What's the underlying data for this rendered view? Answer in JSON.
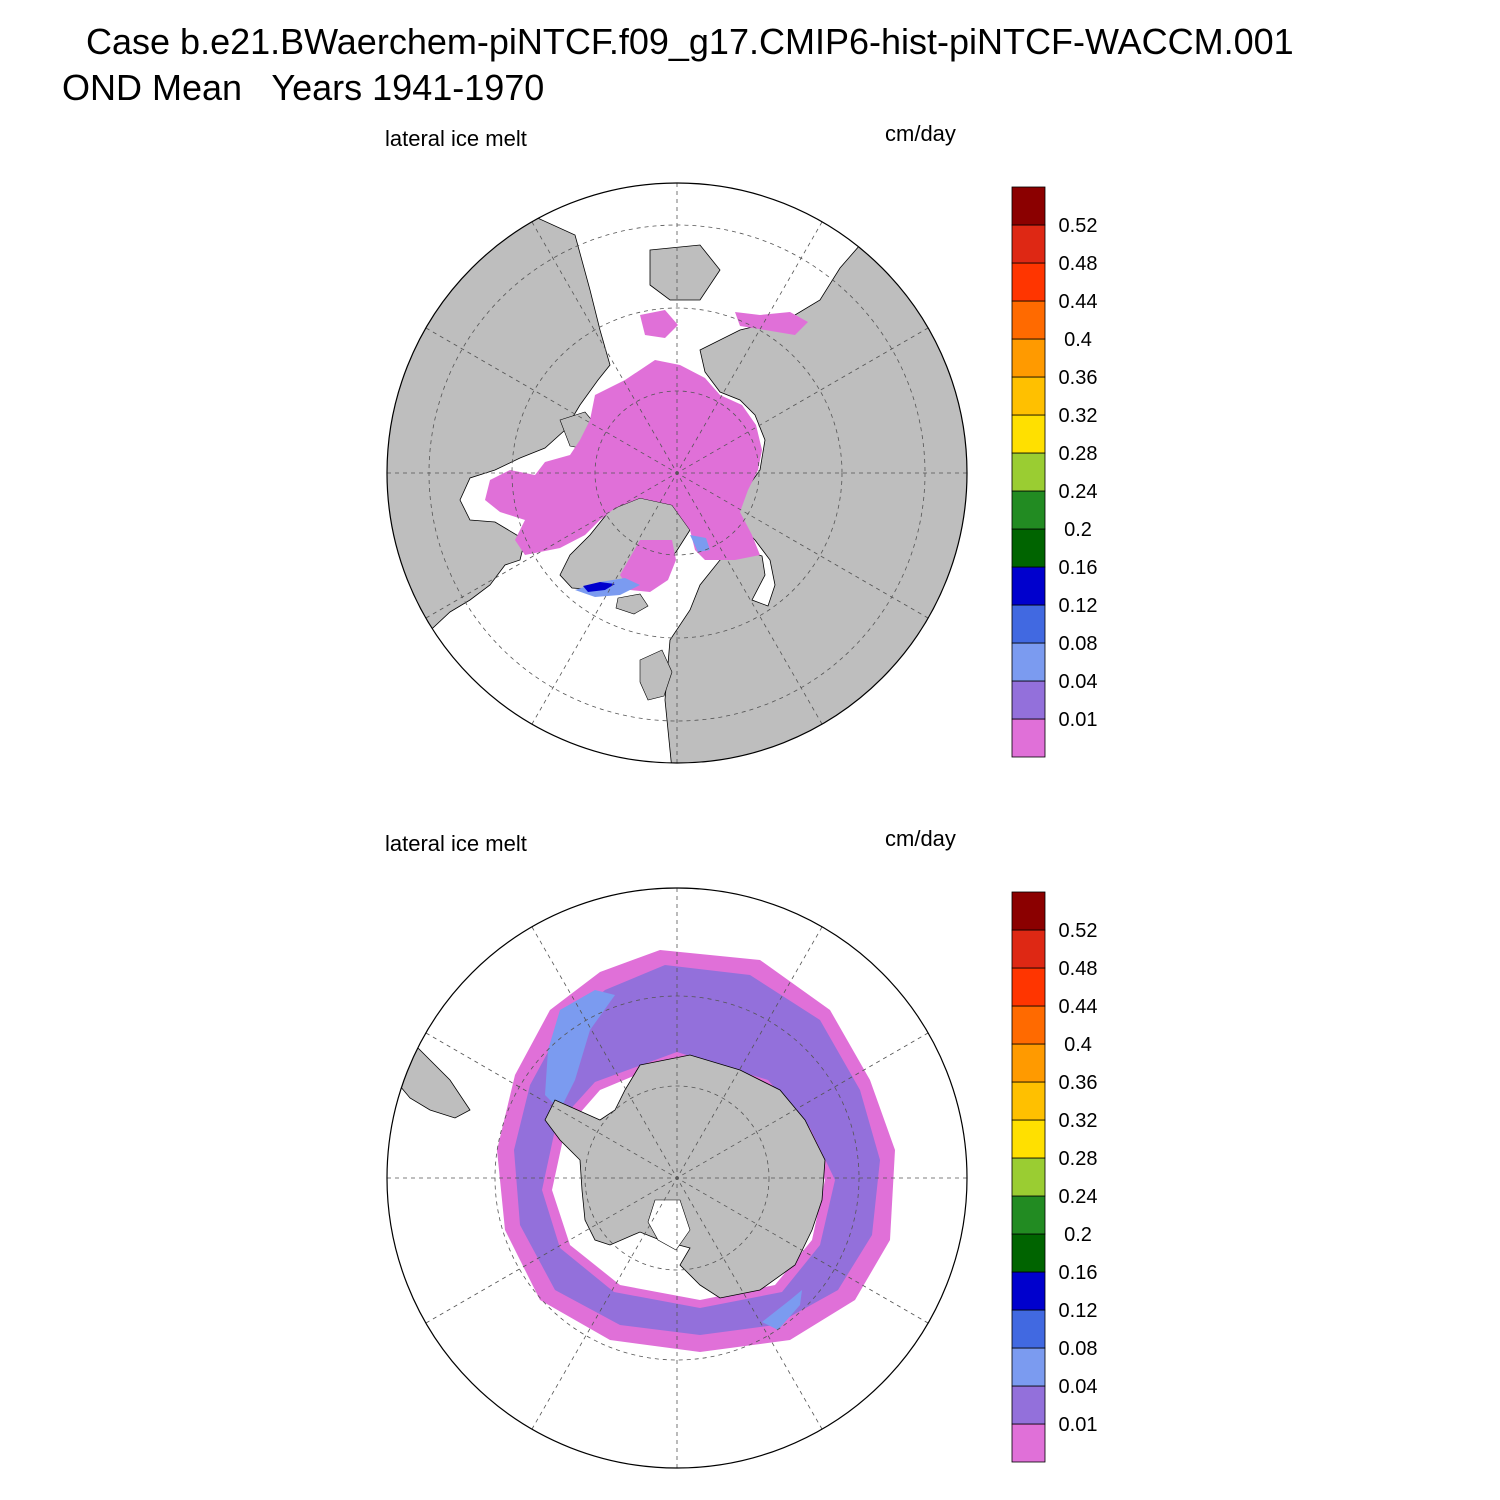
{
  "title": {
    "line1": "Case b.e21.BWaerchem-piNTCF.f09_g17.CMIP6-hist-piNTCF-WACCM.001",
    "line2": "OND Mean   Years 1941-1970"
  },
  "panels": [
    {
      "id": "north",
      "hemisphere": "Northern Hemisphere polar stereographic",
      "field_label": "lateral ice melt",
      "units_label": "cm/day"
    },
    {
      "id": "south",
      "hemisphere": "Southern Hemisphere polar stereographic",
      "field_label": "lateral ice melt",
      "units_label": "cm/day"
    }
  ],
  "colorbar": {
    "colors": [
      "#e070d8",
      "#9370db",
      "#7b9bf0",
      "#4169e1",
      "#0000cd",
      "#006400",
      "#228b22",
      "#9acd32",
      "#ffe000",
      "#ffc000",
      "#ff9a00",
      "#ff6a00",
      "#ff3500",
      "#de2814",
      "#8b0000"
    ],
    "levels": [
      "0.01",
      "0.04",
      "0.08",
      "0.12",
      "0.16",
      "0.2",
      "0.24",
      "0.28",
      "0.32",
      "0.36",
      "0.4",
      "0.44",
      "0.48",
      "0.52"
    ]
  },
  "map_colors": {
    "land": "#bebebe",
    "ocean": "#ffffff",
    "ice_low": "#e070d8",
    "ice_mid": "#9370db",
    "ice_high": "#7b9bf0",
    "ice_higher": "#4169e1",
    "ice_peak": "#0000cd"
  }
}
